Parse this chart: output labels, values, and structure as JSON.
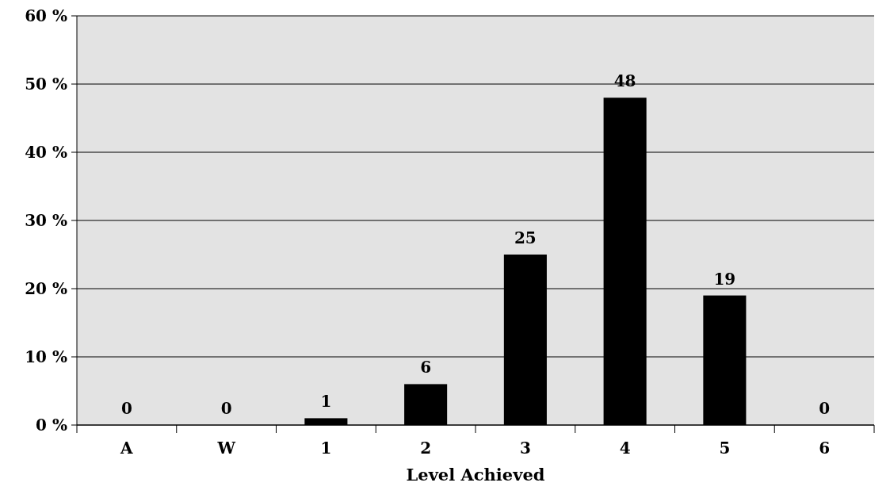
{
  "chart_data": {
    "type": "bar",
    "xlabel": "Level Achieved",
    "categories": [
      "A",
      "W",
      "1",
      "2",
      "3",
      "4",
      "5",
      "6"
    ],
    "values": [
      0,
      0,
      1,
      6,
      25,
      48,
      19,
      0
    ],
    "color": "#000000",
    "ylim": [
      0,
      60
    ],
    "yticks": [
      {
        "value": 0,
        "label": "0 %"
      },
      {
        "value": 10,
        "label": "10 %"
      },
      {
        "value": 20,
        "label": "20 %"
      },
      {
        "value": 30,
        "label": "30 %"
      },
      {
        "value": 40,
        "label": "40 %"
      },
      {
        "value": 50,
        "label": "50 %"
      },
      {
        "value": 60,
        "label": "60 %"
      }
    ],
    "grid": "y",
    "data_labels": true
  }
}
